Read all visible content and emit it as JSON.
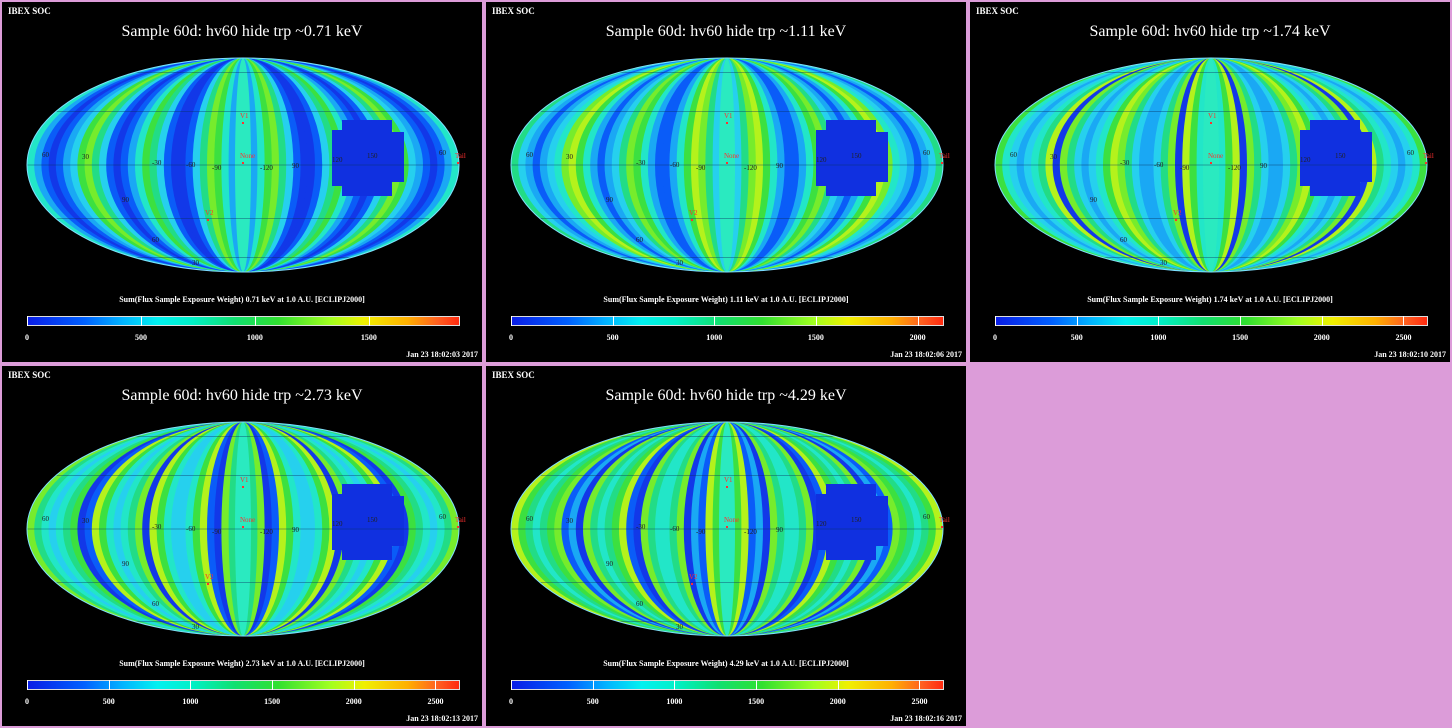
{
  "panels": [
    {
      "header": "IBEX SOC",
      "title": "Sample 60d: hv60 hide trp ~0.71 keV",
      "colorbar_label": "Sum(Flux Sample Exposure Weight)  0.71 keV at 1.0 A.U. [ECLIPJ2000]",
      "ticks": [
        "0",
        "500",
        "1000",
        "1500"
      ],
      "tick_values": [
        0,
        500,
        1000,
        1500
      ],
      "scale_max": 1900,
      "timestamp": "Jan 23 18:02:03 2017"
    },
    {
      "header": "IBEX SOC",
      "title": "Sample 60d: hv60 hide trp ~1.11 keV",
      "colorbar_label": "Sum(Flux Sample Exposure Weight)  1.11 keV at 1.0 A.U. [ECLIPJ2000]",
      "ticks": [
        "0",
        "500",
        "1000",
        "1500",
        "2000"
      ],
      "tick_values": [
        0,
        500,
        1000,
        1500,
        2000
      ],
      "scale_max": 2130,
      "timestamp": "Jan 23 18:02:06 2017"
    },
    {
      "header": "IBEX SOC",
      "title": "Sample 60d: hv60 hide trp ~1.74 keV",
      "colorbar_label": "Sum(Flux Sample Exposure Weight)  1.74 keV at 1.0 A.U. [ECLIPJ2000]",
      "ticks": [
        "0",
        "500",
        "1000",
        "1500",
        "2000",
        "2500"
      ],
      "tick_values": [
        0,
        500,
        1000,
        1500,
        2000,
        2500
      ],
      "scale_max": 2650,
      "timestamp": "Jan 23 18:02:10 2017"
    },
    {
      "header": "IBEX SOC",
      "title": "Sample 60d: hv60 hide trp ~2.73 keV",
      "colorbar_label": "Sum(Flux Sample Exposure Weight)  2.73 keV at 1.0 A.U. [ECLIPJ2000]",
      "ticks": [
        "0",
        "500",
        "1000",
        "1500",
        "2000",
        "2500"
      ],
      "tick_values": [
        0,
        500,
        1000,
        1500,
        2000,
        2500
      ],
      "scale_max": 2650,
      "timestamp": "Jan 23 18:02:13 2017"
    },
    {
      "header": "IBEX SOC",
      "title": "Sample 60d: hv60 hide trp ~4.29 keV",
      "colorbar_label": "Sum(Flux Sample Exposure Weight)  4.29 keV at 1.0 A.U. [ECLIPJ2000]",
      "ticks": [
        "0",
        "500",
        "1000",
        "1500",
        "2000",
        "2500"
      ],
      "tick_values": [
        0,
        500,
        1000,
        1500,
        2000,
        2500
      ],
      "scale_max": 2650,
      "timestamp": "Jan 23 18:02:16 2017"
    }
  ],
  "map_labels": {
    "v1": "V1",
    "v2": "V2",
    "nose": "None",
    "tail": "Tail",
    "grid_numbers": [
      "60",
      "30",
      "-30",
      "-60",
      "-90",
      "-120",
      "90",
      "120",
      "150",
      "60",
      "90",
      "60",
      "30"
    ]
  },
  "colors": {
    "background": "#dc9cd9",
    "panel": "#000000",
    "marker": "#ff3030"
  }
}
